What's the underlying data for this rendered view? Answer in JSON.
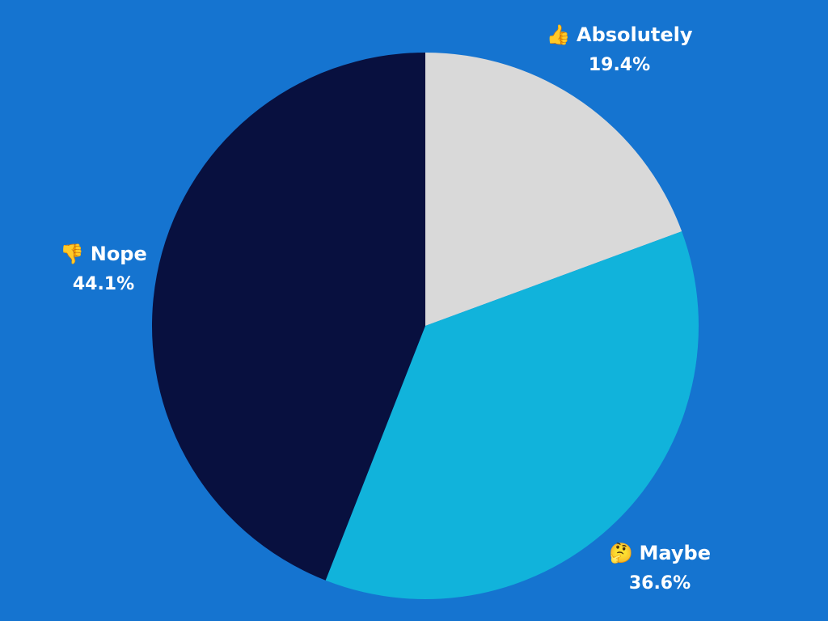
{
  "background_color": "#1574D0",
  "chart_data": {
    "type": "pie",
    "start_angle_deg": 0,
    "direction": "clockwise",
    "title": "",
    "slices": [
      {
        "label": "Absolutely",
        "value": 19.4,
        "value_label": "19.4%",
        "color": "#D9D9D9",
        "emoji": "👍"
      },
      {
        "label": "Maybe",
        "value": 36.6,
        "value_label": "36.6%",
        "color": "#11B3DB",
        "emoji": "🤔"
      },
      {
        "label": "Nope",
        "value": 44.1,
        "value_label": "44.1%",
        "color": "#08103F",
        "emoji": "👎"
      }
    ]
  }
}
